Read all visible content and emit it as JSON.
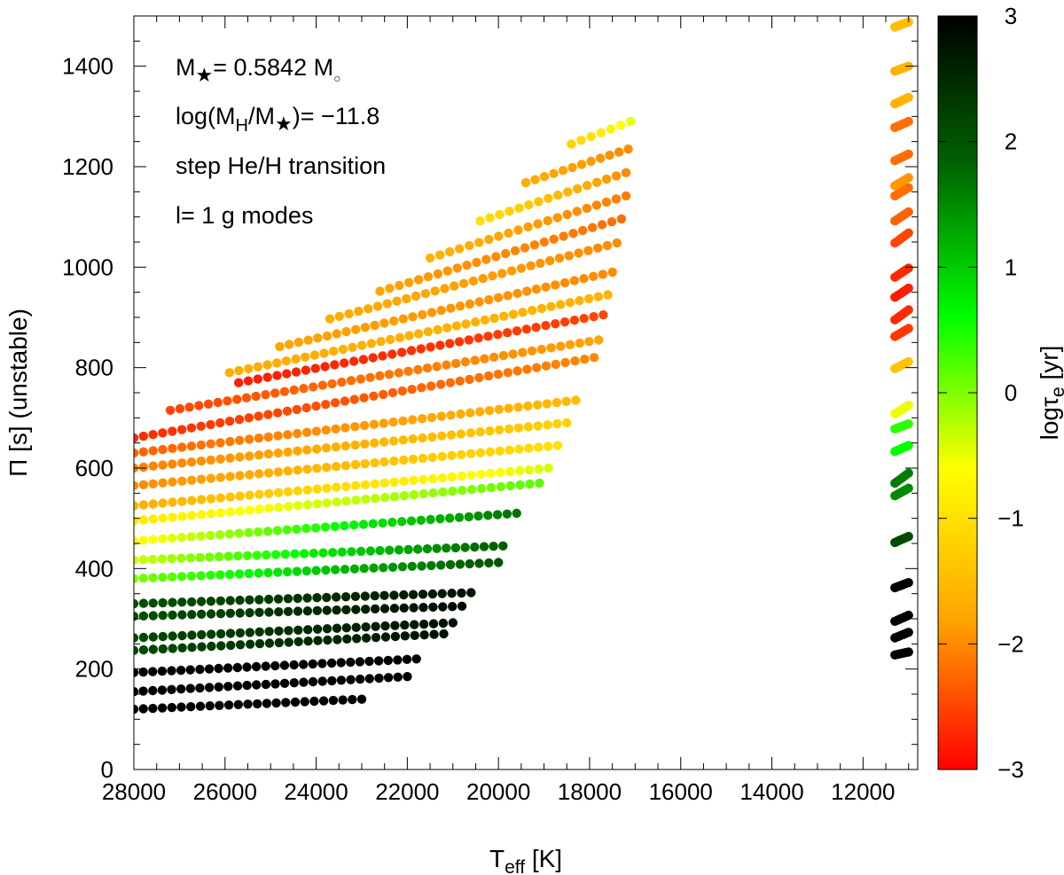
{
  "chart_data": {
    "type": "scatter",
    "xlabel": "T",
    "xlabel_sub": "eff",
    "xlabel_unit": "[K]",
    "ylabel": "Π [s] (unstable)",
    "colorbar_label": "logτ",
    "colorbar_label_sub": "e",
    "colorbar_label_unit": "[yr]",
    "xlim": [
      28000,
      10800
    ],
    "x_reversed": true,
    "ylim": [
      0,
      1500
    ],
    "xticks": [
      "28000",
      "26000",
      "24000",
      "22000",
      "20000",
      "18000",
      "16000",
      "14000",
      "12000"
    ],
    "yticks": [
      "0",
      "200",
      "400",
      "600",
      "800",
      "1000",
      "1200",
      "1400"
    ],
    "clim": [
      -3,
      3
    ],
    "cticks": [
      "−3",
      "−2",
      "−1",
      "0",
      "1",
      "2",
      "3"
    ],
    "colormap": [
      "#ff0000",
      "#ffa500",
      "#ffff00",
      "#00ff00",
      "#006400",
      "#000000"
    ],
    "annotations": {
      "mass_label": "M",
      "mass_value": "= 0.5842 M",
      "hydrogen_prefix": "log(M",
      "hydrogen_sub": "H",
      "hydrogen_mid": "/M",
      "hydrogen_value": ")= −11.8",
      "transition": "step He/H transition",
      "modes": "l= 1 g modes"
    },
    "sequences": [
      {
        "p0": 120,
        "p1": 140,
        "t_end": 23000,
        "c0": 3,
        "c1": 3
      },
      {
        "p0": 155,
        "p1": 185,
        "t_end": 22000,
        "c0": 3,
        "c1": 3
      },
      {
        "p0": 193,
        "p1": 220,
        "t_end": 21800,
        "c0": 3,
        "c1": 3
      },
      {
        "p0": 237,
        "p1": 270,
        "t_end": 21200,
        "c0": 2.1,
        "c1": 2.8
      },
      {
        "p0": 262,
        "p1": 292,
        "t_end": 21000,
        "c0": 2.1,
        "c1": 2.8
      },
      {
        "p0": 305,
        "p1": 325,
        "t_end": 20800,
        "c0": 2,
        "c1": 2.9
      },
      {
        "p0": 330,
        "p1": 352,
        "t_end": 20600,
        "c0": 2,
        "c1": 2.8
      },
      {
        "p0": 380,
        "p1": 412,
        "t_end": 20000,
        "c0": 0,
        "c1": 2
      },
      {
        "p0": 417,
        "p1": 445,
        "t_end": 19900,
        "c0": -0.4,
        "c1": 1.9
      },
      {
        "p0": 455,
        "p1": 510,
        "t_end": 19600,
        "c0": -0.7,
        "c1": 1.7
      },
      {
        "p0": 495,
        "p1": 570,
        "t_end": 19100,
        "c0": -0.9,
        "c1": 0.2
      },
      {
        "p0": 525,
        "p1": 600,
        "t_end": 18900,
        "c0": -1.7,
        "c1": -0.4
      },
      {
        "p0": 565,
        "p1": 645,
        "t_end": 18700,
        "c0": -2.0,
        "c1": -1.0
      },
      {
        "p0": 600,
        "p1": 690,
        "t_end": 18500,
        "c0": -2.1,
        "c1": -1.2
      },
      {
        "p0": 630,
        "p1": 735,
        "t_end": 18300,
        "c0": -2.3,
        "c1": -1.5
      },
      {
        "p0": 660,
        "p1": 820,
        "t_end": 17900,
        "c0": -2.7,
        "c1": -2.0
      },
      {
        "p0": 715,
        "p1": 855,
        "t_end": 17800,
        "c0": -2.5,
        "c1": -1.8,
        "t_start": 27200
      },
      {
        "p0": 770,
        "p1": 905,
        "t_end": 17700,
        "c0": -2.8,
        "c1": -2.5,
        "t_start": 25700
      },
      {
        "p0": 790,
        "p1": 945,
        "t_end": 17600,
        "c0": -1.7,
        "c1": -1.6,
        "t_start": 25900
      },
      {
        "p0": 842,
        "p1": 990,
        "t_end": 17500,
        "c0": -1.8,
        "c1": -2.0,
        "t_start": 24800
      },
      {
        "p0": 897,
        "p1": 1048,
        "t_end": 17400,
        "c0": -1.7,
        "c1": -2.0,
        "t_start": 23700
      },
      {
        "p0": 952,
        "p1": 1096,
        "t_end": 17300,
        "c0": -1.8,
        "c1": -2.2,
        "t_start": 22600
      },
      {
        "p0": 1018,
        "p1": 1142,
        "t_end": 17200,
        "c0": -1.6,
        "c1": -2.1,
        "t_start": 21500
      },
      {
        "p0": 1092,
        "p1": 1188,
        "t_end": 17200,
        "c0": -1.0,
        "c1": -2.0,
        "t_start": 20400
      },
      {
        "p0": 1168,
        "p1": 1235,
        "t_end": 17150,
        "c0": -1.7,
        "c1": -2.0,
        "t_start": 19400
      },
      {
        "p0": 1245,
        "p1": 1290,
        "t_end": 17100,
        "c0": -1.2,
        "c1": -0.5,
        "t_start": 18400
      }
    ],
    "cool_sequences": [
      {
        "p0": 228,
        "p1": 234,
        "c": 3
      },
      {
        "p0": 262,
        "p1": 273,
        "c": 3
      },
      {
        "p0": 295,
        "p1": 307,
        "c": 3
      },
      {
        "p0": 362,
        "p1": 372,
        "c": 3
      },
      {
        "p0": 452,
        "p1": 464,
        "c": 2.1
      },
      {
        "p0": 545,
        "p1": 560,
        "c": 1.5
      },
      {
        "p0": 570,
        "p1": 590,
        "c": 1.6
      },
      {
        "p0": 633,
        "p1": 645,
        "c": 0.6
      },
      {
        "p0": 678,
        "p1": 688,
        "c": 0.4
      },
      {
        "p0": 708,
        "p1": 725,
        "c": -0.5
      },
      {
        "p0": 798,
        "p1": 812,
        "c": -1.4
      },
      {
        "p0": 862,
        "p1": 878,
        "c": -2.6
      },
      {
        "p0": 895,
        "p1": 915,
        "c": -2.7
      },
      {
        "p0": 940,
        "p1": 958,
        "c": -2.8
      },
      {
        "p0": 980,
        "p1": 998,
        "c": -2.7
      },
      {
        "p0": 1048,
        "p1": 1068,
        "c": -2.5
      },
      {
        "p0": 1092,
        "p1": 1110,
        "c": -2.3
      },
      {
        "p0": 1142,
        "p1": 1158,
        "c": -2.2
      },
      {
        "p0": 1212,
        "p1": 1225,
        "c": -2.2
      },
      {
        "p0": 1162,
        "p1": 1178,
        "c": -1.9
      },
      {
        "p0": 1278,
        "p1": 1290,
        "c": -2.2
      },
      {
        "p0": 1325,
        "p1": 1338,
        "c": -1.6
      },
      {
        "p0": 1390,
        "p1": 1400,
        "c": -1.6
      },
      {
        "p0": 1478,
        "p1": 1488,
        "c": -1.5
      }
    ],
    "cool_t_start": 11300,
    "cool_t_end": 11000
  }
}
